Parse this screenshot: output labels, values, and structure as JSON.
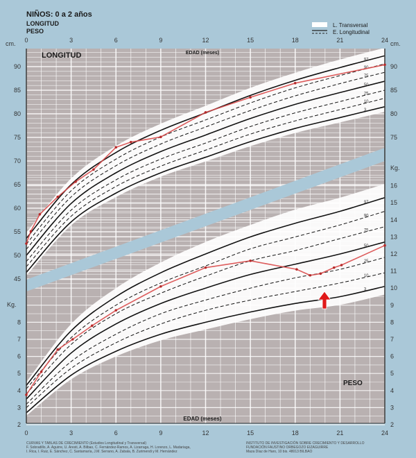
{
  "header": {
    "title": "NIÑOS: 0 a 2 años",
    "line1": "LONGITUD",
    "line2": "PESO"
  },
  "legend": {
    "transversal": "L. Transversal",
    "longitudinal": "E. Longitudinal"
  },
  "panels": {
    "length_label": "LONGITUD",
    "weight_label": "PESO",
    "x_label_top": "EDAD (meses)",
    "x_label_bottom": "EDAD (meses)",
    "length_unit": "cm.",
    "weight_unit": "Kg."
  },
  "footer": {
    "left_line1": "CURVAS Y TABLAS DE CRECIMIENTO (Estudios Longitudinal y Transversal)",
    "left_line2": "F. Sobradillo, A. Aguirre, U. Aresti, A. Bilbao, C. Fernández-Ramos, A. Lizarraga, H. Lorenzo, L. Madariaga,",
    "left_line3": "I. Rica, I. Ruiz, E. Sánchez, C. Santamaría, J.M. Serrano, A. Zabala, B. Zurimendi y M. Hernández",
    "right_line1": "INSTITUTO DE INVESTIGACIÓN SOBRE CRECIMIENTO Y DESARROLLO",
    "right_line2": "FUNDACIÓN FAUSTINO ORBEGOZO EIZAGUIRRE",
    "right_line3": "Maza Díaz de Haro, 10 bis. 48013 BILBAO"
  },
  "colors": {
    "background": "#aac8d8",
    "plot": "#b9b1b1",
    "grid": "#ffffff",
    "patient": "#d94a4a",
    "arrow": "#e01818",
    "band": "#aac8d8"
  },
  "chart_data": [
    {
      "type": "line",
      "title": "LONGITUD",
      "xlabel": "EDAD (meses)",
      "ylabel": "cm.",
      "xlim": [
        0,
        24
      ],
      "ylim": [
        44,
        94
      ],
      "x_ticks": [
        0,
        3,
        6,
        9,
        12,
        15,
        18,
        21,
        24
      ],
      "y_ticks_left": [
        90,
        85,
        80,
        75,
        70,
        65,
        60,
        55,
        50,
        45
      ],
      "y_ticks_right": [
        90,
        85,
        80,
        75
      ],
      "grid": true,
      "percentile_months": [
        0,
        3,
        6,
        9,
        12,
        15,
        18,
        21,
        24
      ],
      "percentiles": [
        {
          "name": "3",
          "style": "solid",
          "values": [
            46.4,
            57.1,
            63.2,
            67.5,
            70.8,
            74.1,
            76.9,
            79.2,
            81.5
          ]
        },
        {
          "name": "10",
          "style": "dashed",
          "values": [
            47.6,
            58.3,
            64.6,
            68.9,
            72.3,
            75.7,
            78.5,
            80.9,
            83.3
          ]
        },
        {
          "name": "25",
          "style": "dashed",
          "values": [
            48.7,
            59.6,
            66.0,
            70.4,
            73.8,
            77.3,
            80.2,
            82.6,
            85.0
          ]
        },
        {
          "name": "50",
          "style": "solid",
          "values": [
            50.0,
            61.0,
            67.5,
            72.0,
            75.5,
            79.0,
            82.0,
            84.5,
            86.9
          ]
        },
        {
          "name": "75",
          "style": "dashed",
          "values": [
            51.3,
            62.4,
            69.0,
            73.6,
            77.2,
            80.7,
            83.8,
            86.4,
            88.8
          ]
        },
        {
          "name": "90",
          "style": "dashed",
          "values": [
            52.4,
            63.7,
            70.4,
            75.1,
            78.7,
            82.3,
            85.5,
            88.1,
            90.6
          ]
        },
        {
          "name": "97",
          "style": "solid",
          "values": [
            53.6,
            65.0,
            71.8,
            76.5,
            80.2,
            83.9,
            87.1,
            89.8,
            92.3
          ]
        }
      ],
      "patient": {
        "x": [
          0,
          0.3,
          0.9,
          2.1,
          3.3,
          4.5,
          6,
          7,
          9,
          12,
          15,
          18,
          24
        ],
        "y": [
          52.5,
          55.1,
          58.7,
          62.4,
          65.6,
          68.2,
          72.9,
          74,
          75.1,
          80.3,
          83.5,
          86.5,
          90.4
        ]
      }
    },
    {
      "type": "line",
      "title": "PESO",
      "xlabel": "EDAD (meses)",
      "ylabel": "Kg.",
      "xlim": [
        0,
        24
      ],
      "ylim": [
        2,
        16.5
      ],
      "x_ticks": [
        0,
        3,
        6,
        9,
        12,
        15,
        18,
        21,
        24
      ],
      "y_ticks_left": [
        8,
        7,
        6,
        5,
        4,
        3,
        2
      ],
      "y_ticks_right": [
        16,
        15,
        14,
        13,
        12,
        11,
        10,
        9,
        8,
        7,
        6,
        5,
        4,
        3,
        2
      ],
      "grid": true,
      "percentile_months": [
        0,
        3,
        6,
        9,
        12,
        15,
        18,
        21,
        24
      ],
      "percentiles": [
        {
          "name": "3",
          "style": "solid",
          "values": [
            2.7,
            4.9,
            6.3,
            7.3,
            8.0,
            8.6,
            9.1,
            9.5,
            10.1
          ]
        },
        {
          "name": "10",
          "style": "dashed",
          "values": [
            3.0,
            5.3,
            6.8,
            7.9,
            8.7,
            9.3,
            9.8,
            10.3,
            10.9
          ]
        },
        {
          "name": "25",
          "style": "dashed",
          "values": [
            3.2,
            5.7,
            7.3,
            8.5,
            9.3,
            10.0,
            10.6,
            11.1,
            11.8
          ]
        },
        {
          "name": "50",
          "style": "solid",
          "values": [
            3.5,
            6.2,
            7.9,
            9.1,
            10.0,
            10.8,
            11.4,
            12.0,
            12.7
          ]
        },
        {
          "name": "75",
          "style": "dashed",
          "values": [
            3.8,
            6.7,
            8.5,
            9.7,
            10.7,
            11.6,
            12.2,
            12.9,
            13.6
          ]
        },
        {
          "name": "90",
          "style": "dashed",
          "values": [
            4.1,
            7.1,
            9.0,
            10.3,
            11.3,
            12.3,
            13.0,
            13.7,
            14.5
          ]
        },
        {
          "name": "97",
          "style": "solid",
          "values": [
            4.3,
            7.5,
            9.5,
            10.9,
            12.0,
            13.0,
            13.8,
            14.5,
            15.3
          ]
        }
      ],
      "patient": {
        "x": [
          0,
          1,
          2.1,
          3.1,
          4.4,
          6,
          9,
          12,
          15,
          18.1,
          19,
          19.7,
          20.6,
          21.1,
          24
        ],
        "y": [
          3.75,
          5.1,
          6.4,
          7.0,
          7.8,
          8.7,
          10.1,
          11.2,
          11.6,
          11.1,
          10.75,
          10.85,
          11.2,
          11.35,
          12.5
        ]
      },
      "annotation": {
        "type": "arrow-up",
        "x": 19.8,
        "color": "#e01818"
      }
    }
  ]
}
